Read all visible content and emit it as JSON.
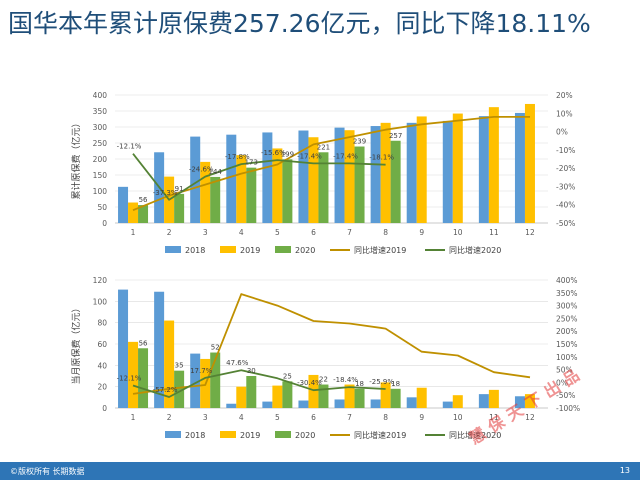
{
  "slide": {
    "title": "国华本年累计原保费257.26亿元，同比下降18.11%",
    "copyright": "©版权所有 长期数据",
    "page_number": "13",
    "stamp_text": "慧保天下出品"
  },
  "colors": {
    "c2018": "#5b9bd5",
    "c2019": "#ffc000",
    "c2020": "#70ad47",
    "g2019": "#bf9000",
    "g2020": "#548235"
  },
  "chart_data": [
    {
      "type": "bar",
      "categories": [
        "1",
        "2",
        "3",
        "4",
        "5",
        "6",
        "7",
        "8",
        "9",
        "10",
        "11",
        "12"
      ],
      "ylabel": "累计原保费（亿元）",
      "ylim": [
        0,
        400
      ],
      "y2lim": [
        -50,
        20
      ],
      "yticks": [
        "0",
        "50",
        "100",
        "150",
        "200",
        "250",
        "300",
        "350",
        "400"
      ],
      "y2ticks": [
        "-50%",
        "-40%",
        "-30%",
        "-20%",
        "-10%",
        "0%",
        "10%",
        "20%"
      ],
      "series": [
        {
          "name": "2018",
          "values": [
            113,
            221,
            270,
            276,
            283,
            289,
            298,
            303,
            313,
            319,
            334,
            344
          ]
        },
        {
          "name": "2019",
          "values": [
            64,
            145,
            191,
            212,
            233,
            268,
            290,
            313,
            333,
            342,
            362,
            372
          ]
        },
        {
          "name": "2020",
          "values": [
            56,
            91,
            144,
            173,
            199,
            221,
            239,
            257,
            null,
            null,
            null,
            null
          ]
        }
      ],
      "line_series": [
        {
          "name": "同比增速2019",
          "values": [
            -43,
            -35,
            -29,
            -23,
            -18,
            -7,
            -3,
            1,
            4,
            6,
            8,
            8
          ]
        },
        {
          "name": "同比增速2020",
          "values": [
            -12.1,
            -37.3,
            -24.6,
            -17.8,
            -15.6,
            -17.4,
            -17.4,
            -18.1,
            null,
            null,
            null,
            null
          ]
        }
      ],
      "bar_labels_2020": [
        "56",
        "91",
        "144",
        "173",
        "199",
        "221",
        "239",
        "257"
      ],
      "line_labels_2020": [
        "-12.1%",
        "-37.3%",
        "-24.6%",
        "-17.8%",
        "-15.6%",
        "-17.4%",
        "-17.4%",
        "-18.1%"
      ],
      "legend": [
        "2018",
        "2019",
        "2020",
        "同比增速2019",
        "同比增速2020"
      ]
    },
    {
      "type": "bar",
      "categories": [
        "1",
        "2",
        "3",
        "4",
        "5",
        "6",
        "7",
        "8",
        "9",
        "10",
        "11",
        "12"
      ],
      "ylabel": "当月原保费（亿元）",
      "ylim": [
        0,
        120
      ],
      "y2lim": [
        -100,
        400
      ],
      "yticks": [
        "0",
        "20",
        "40",
        "60",
        "80",
        "100",
        "120"
      ],
      "y2ticks": [
        "-100%",
        "-50%",
        "0%",
        "50%",
        "100%",
        "150%",
        "200%",
        "250%",
        "300%",
        "350%",
        "400%"
      ],
      "series": [
        {
          "name": "2018",
          "values": [
            111,
            109,
            51,
            4,
            6,
            7,
            8,
            8,
            10,
            6,
            13,
            11
          ]
        },
        {
          "name": "2019",
          "values": [
            62,
            82,
            46,
            20,
            21,
            31,
            22,
            24,
            19,
            12,
            17,
            13
          ]
        },
        {
          "name": "2020",
          "values": [
            56,
            35,
            52,
            30,
            25,
            22,
            18,
            18,
            null,
            null,
            null,
            null
          ]
        }
      ],
      "line_series": [
        {
          "name": "同比增速2019",
          "values": [
            -45,
            -25,
            -10,
            345,
            300,
            240,
            230,
            210,
            120,
            105,
            40,
            20
          ]
        },
        {
          "name": "同比增速2020",
          "values": [
            -12.1,
            -57.2,
            17.7,
            47.6,
            16,
            -30.4,
            -18.4,
            -25.9,
            null,
            null,
            null,
            null
          ]
        }
      ],
      "bar_labels_2020": [
        "56",
        "35",
        "52",
        "30",
        "25",
        "22",
        "18",
        "18"
      ],
      "line_labels_2020": [
        "-12.1%",
        "-57.2%",
        "17.7%",
        "47.6%",
        "",
        "-30.4%",
        "-18.4%",
        "-25.9%"
      ],
      "legend": [
        "2018",
        "2019",
        "2020",
        "同比增速2019",
        "同比增速2020"
      ]
    }
  ]
}
